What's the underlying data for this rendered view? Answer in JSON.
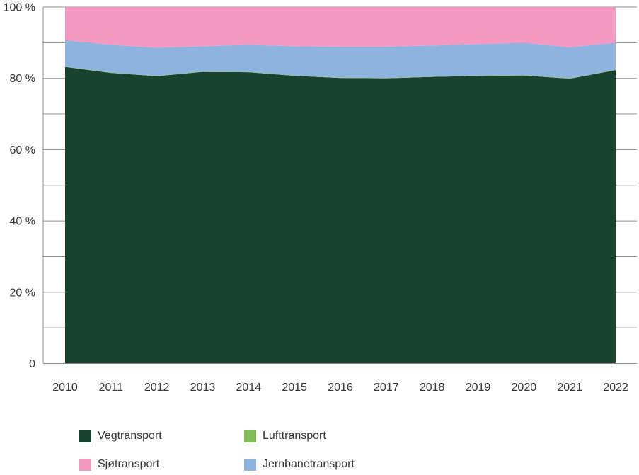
{
  "chart_data": {
    "type": "area",
    "stacked": true,
    "percent_stacked": true,
    "title": "",
    "xlabel": "",
    "ylabel": "",
    "x": [
      "2010",
      "2011",
      "2012",
      "2013",
      "2014",
      "2015",
      "2016",
      "2017",
      "2018",
      "2019",
      "2020",
      "2021",
      "2022"
    ],
    "series": [
      {
        "name": "Vegtransport",
        "color": "#1a4230",
        "values": [
          83.2,
          81.5,
          80.6,
          81.8,
          81.7,
          80.7,
          80.1,
          80.0,
          80.4,
          80.7,
          80.8,
          79.9,
          82.3
        ]
      },
      {
        "name": "Lufttransport",
        "color": "#82bd5a",
        "values": [
          0.1,
          0.1,
          0.1,
          0.1,
          0.1,
          0.1,
          0.1,
          0.1,
          0.1,
          0.1,
          0.1,
          0.1,
          0.1
        ]
      },
      {
        "name": "Jernbanetransport",
        "color": "#8db3de",
        "values": [
          7.4,
          7.8,
          7.9,
          7.1,
          7.6,
          8.2,
          8.7,
          8.8,
          8.7,
          8.8,
          9.1,
          8.7,
          7.6
        ]
      },
      {
        "name": "Sjøtransport",
        "color": "#f49ac1",
        "values": [
          9.3,
          10.6,
          11.4,
          11.0,
          10.6,
          11.0,
          11.1,
          11.1,
          10.8,
          10.4,
          10.0,
          11.3,
          10.0
        ]
      }
    ],
    "ylim": [
      0,
      100
    ],
    "grid_step": 10,
    "grid_on": true,
    "y_ticks": [
      {
        "v": 0,
        "label": "0"
      },
      {
        "v": 20,
        "label": "20 %"
      },
      {
        "v": 40,
        "label": "40 %"
      },
      {
        "v": 60,
        "label": "60 %"
      },
      {
        "v": 80,
        "label": "80 %"
      },
      {
        "v": 100,
        "label": "100 %"
      }
    ],
    "grid_color": "#8c8c8c",
    "axis_color": "#8c8c8c",
    "label_color": "#333333",
    "legend_position": "bottom"
  },
  "legend": {
    "items": [
      {
        "label": "Vegtransport",
        "color": "#1a4230"
      },
      {
        "label": "Lufttransport",
        "color": "#82bd5a"
      },
      {
        "label": "Sjøtransport",
        "color": "#f49ac1"
      },
      {
        "label": "Jernbanetransport",
        "color": "#8db3de"
      }
    ]
  }
}
